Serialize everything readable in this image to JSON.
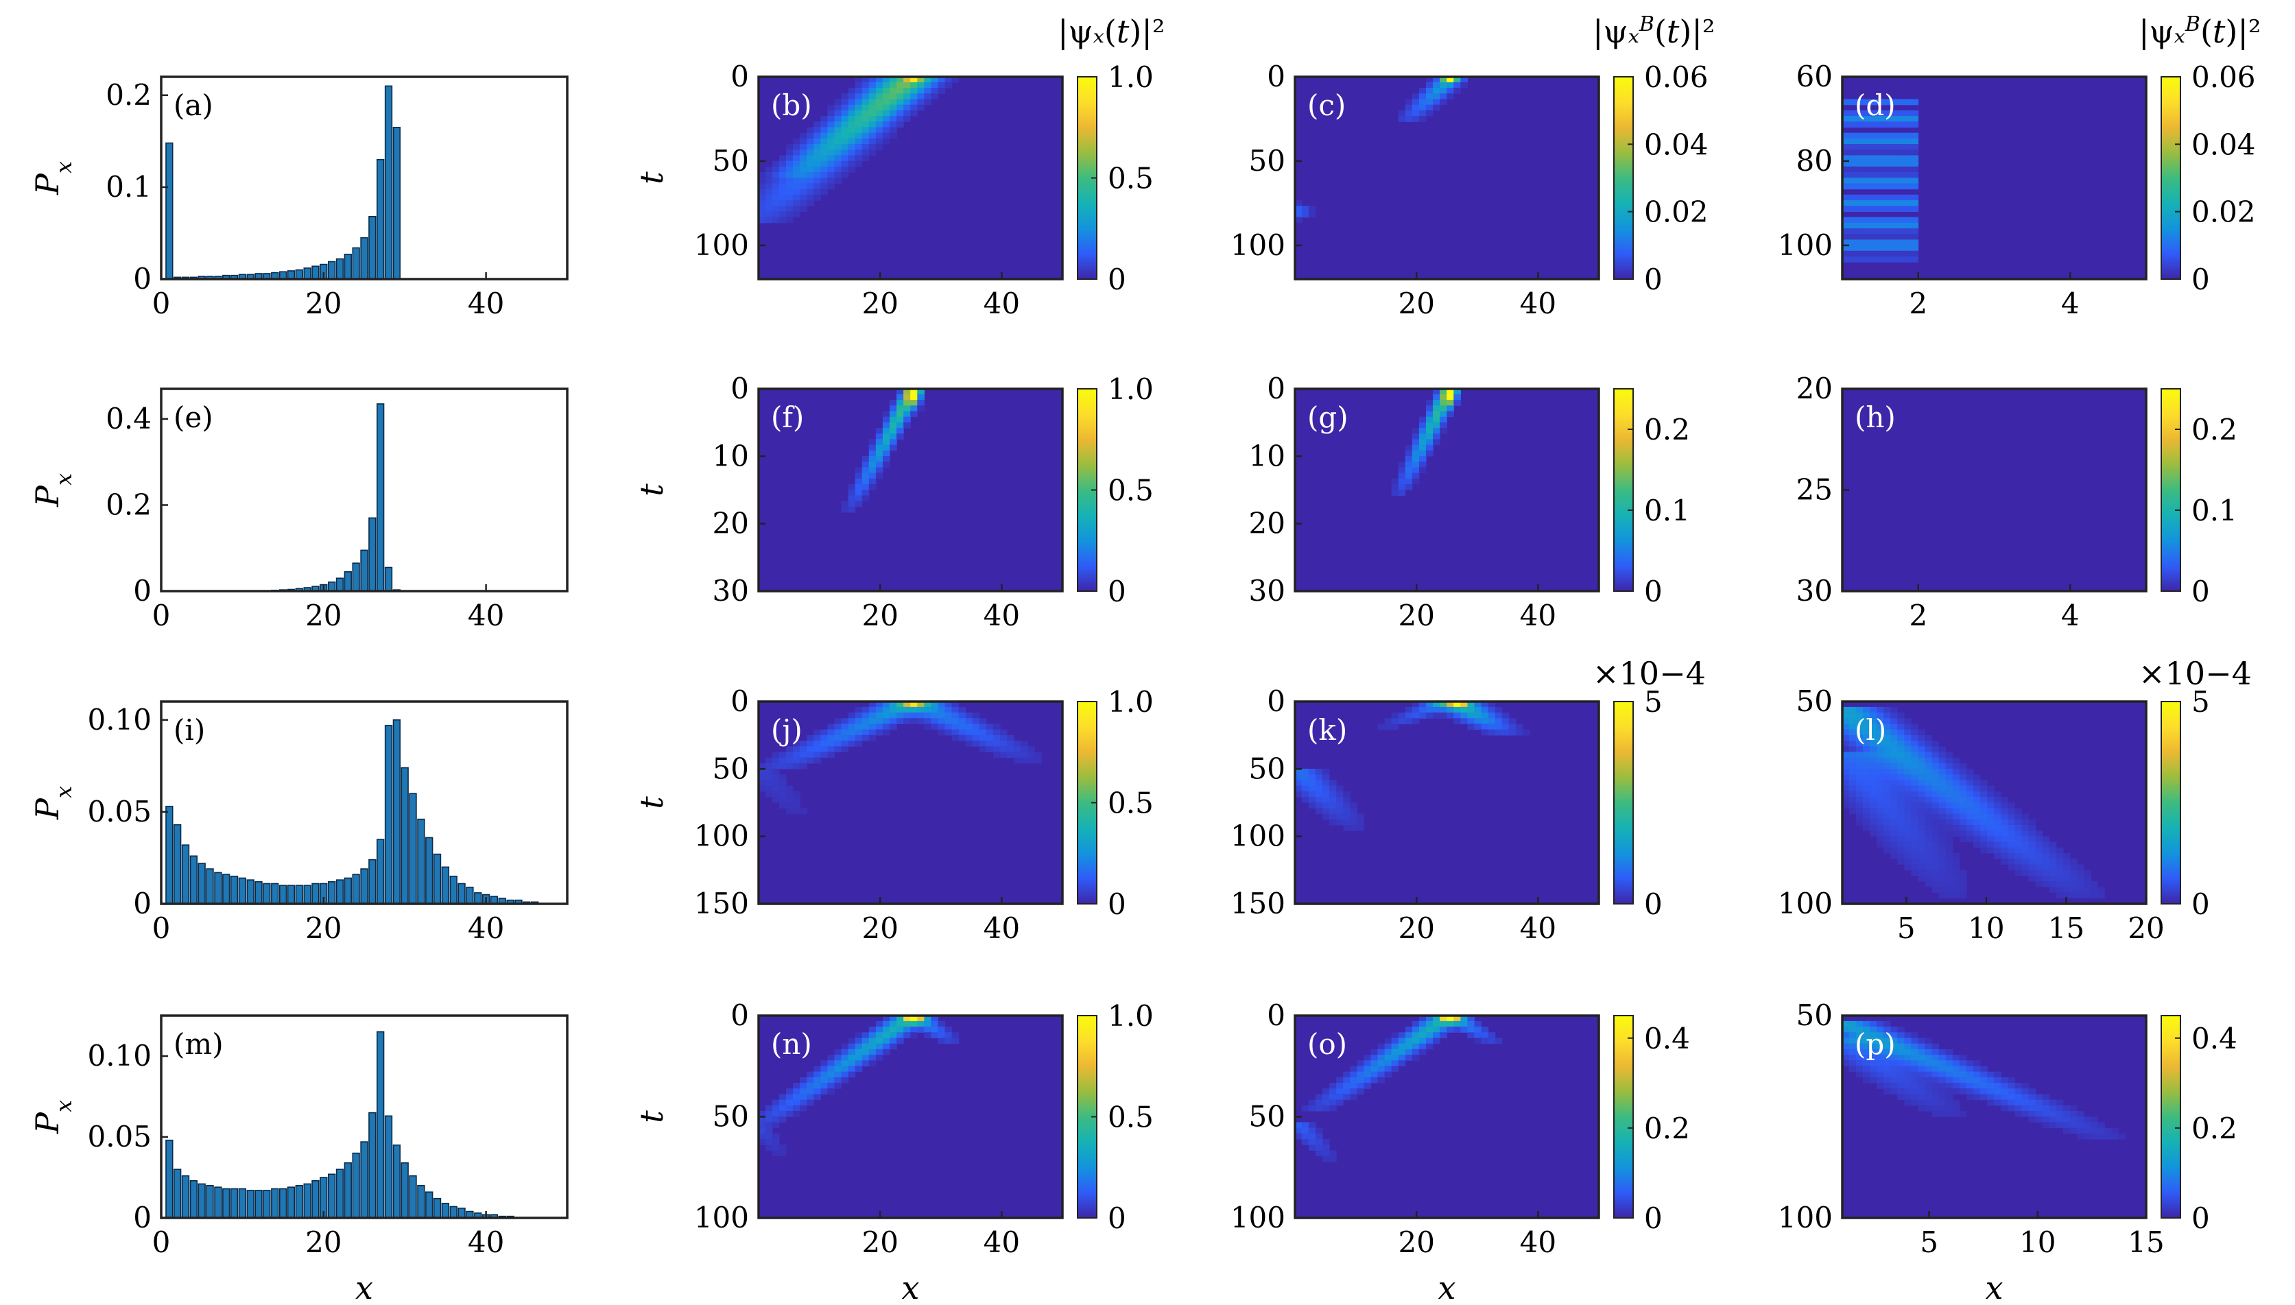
{
  "colorscale": [
    "#3e26a8",
    "#2f5cf8",
    "#1394dc",
    "#16b2b5",
    "#3dbb80",
    "#9bbd3f",
    "#ecb833",
    "#fdde2a",
    "#f9fb0e"
  ],
  "colors": {
    "bar_fill": "#1f77b4",
    "bar_edge": "#0a2a4a",
    "label_dark": "#000000",
    "label_light": "#ffffff"
  },
  "cb_titles": {
    "psi": "|ψx(t)|2",
    "psiB": "|ψxB(t)|2",
    "sci": "×10−4"
  },
  "chart_data": [
    {
      "id": "a",
      "type": "bar",
      "label": "(a)",
      "row": 0,
      "col": 0,
      "ylabel": "Px",
      "xlim": [
        0,
        50
      ],
      "ylim": [
        0,
        0.22
      ],
      "xticks": [
        0,
        20,
        40
      ],
      "xtick_labels": [
        "0",
        "20",
        "40"
      ],
      "yticks": [
        0,
        0.1,
        0.2
      ],
      "ytick_labels": [
        "0",
        "0.1",
        "0.2"
      ],
      "values": [
        0.148,
        0.002,
        0.002,
        0.002,
        0.003,
        0.003,
        0.003,
        0.004,
        0.004,
        0.005,
        0.005,
        0.006,
        0.006,
        0.007,
        0.008,
        0.009,
        0.01,
        0.012,
        0.014,
        0.016,
        0.019,
        0.022,
        0.027,
        0.034,
        0.045,
        0.068,
        0.13,
        0.21,
        0.165
      ]
    },
    {
      "id": "b",
      "type": "heatmap",
      "label": "(b)",
      "row": 0,
      "col": 1,
      "ylabel": "t",
      "xlim": [
        0,
        50
      ],
      "ylim": [
        0,
        120
      ],
      "xticks": [
        20,
        40
      ],
      "xtick_labels": [
        "20",
        "40"
      ],
      "yticks": [
        0,
        50,
        100
      ],
      "ytick_labels": [
        "0",
        "50",
        "100"
      ],
      "vmax": 1.0,
      "cbar_ticks": [
        0,
        0.5,
        1.0
      ],
      "cbar_tick_labels": [
        "0",
        "0.5",
        "1.0"
      ],
      "cbar_title": "psi",
      "features": [
        {
          "kind": "ray",
          "x0": 25,
          "t0": 0,
          "x1": 0,
          "t1": 85,
          "i0": 0.35,
          "i1": 0.08,
          "spread": 3.5
        },
        {
          "kind": "ray",
          "x0": 26,
          "t0": 0,
          "x1": 5,
          "t1": 60,
          "i0": 0.25,
          "i1": 0.06,
          "spread": 2.5
        },
        {
          "kind": "spot",
          "x": 25.5,
          "t": 0,
          "i": 0.55,
          "spread": 1.2
        }
      ]
    },
    {
      "id": "c",
      "type": "heatmap",
      "label": "(c)",
      "row": 0,
      "col": 2,
      "ylabel": "",
      "xlim": [
        0,
        50
      ],
      "ylim": [
        0,
        120
      ],
      "xticks": [
        20,
        40
      ],
      "xtick_labels": [
        "20",
        "40"
      ],
      "yticks": [
        0,
        50,
        100
      ],
      "ytick_labels": [
        "0",
        "50",
        "100"
      ],
      "vmax": 0.06,
      "cbar_ticks": [
        0,
        0.02,
        0.04,
        0.06
      ],
      "cbar_tick_labels": [
        "0",
        "0.02",
        "0.04",
        "0.06"
      ],
      "cbar_title": "psiB",
      "features": [
        {
          "kind": "ray",
          "x0": 26,
          "t0": 0,
          "x1": 18,
          "t1": 28,
          "i0": 0.35,
          "i1": 0.05,
          "spread": 1.5
        },
        {
          "kind": "spot",
          "x": 25.5,
          "t": 1,
          "i": 0.95,
          "spread": 1.0
        },
        {
          "kind": "spot",
          "x": 0.5,
          "t": 80,
          "i": 0.15,
          "spread": 2.0
        }
      ]
    },
    {
      "id": "d",
      "type": "heatmap",
      "label": "(d)",
      "row": 0,
      "col": 3,
      "ylabel": "",
      "xlim": [
        1,
        5
      ],
      "ylim": [
        60,
        108
      ],
      "xticks": [
        2,
        4
      ],
      "xtick_labels": [
        "2",
        "4"
      ],
      "yticks": [
        60,
        80,
        100
      ],
      "ytick_labels": [
        "60",
        "80",
        "100"
      ],
      "vmax": 0.06,
      "cbar_ticks": [
        0,
        0.02,
        0.04,
        0.06
      ],
      "cbar_tick_labels": [
        "0",
        "0.02",
        "0.04",
        "0.06"
      ],
      "cbar_title": "psiB",
      "features": [
        {
          "kind": "bands",
          "xmax": 2.0,
          "tmin": 65,
          "tmax": 104,
          "period": 5.0,
          "i": 0.22
        }
      ]
    },
    {
      "id": "e",
      "type": "bar",
      "label": "(e)",
      "row": 1,
      "col": 0,
      "ylabel": "Px",
      "xlim": [
        0,
        50
      ],
      "ylim": [
        0,
        0.47
      ],
      "xticks": [
        0,
        20,
        40
      ],
      "xtick_labels": [
        "0",
        "20",
        "40"
      ],
      "yticks": [
        0,
        0.2,
        0.4
      ],
      "ytick_labels": [
        "0",
        "0.2",
        "0.4"
      ],
      "values": [
        0,
        0,
        0,
        0,
        0,
        0,
        0,
        0,
        0,
        0,
        0,
        0,
        0,
        0.002,
        0.003,
        0.004,
        0.006,
        0.008,
        0.011,
        0.015,
        0.021,
        0.03,
        0.045,
        0.065,
        0.095,
        0.17,
        0.435,
        0.055,
        0.003
      ]
    },
    {
      "id": "f",
      "type": "heatmap",
      "label": "(f)",
      "row": 1,
      "col": 1,
      "ylabel": "t",
      "xlim": [
        0,
        50
      ],
      "ylim": [
        0,
        30
      ],
      "xticks": [
        20,
        40
      ],
      "xtick_labels": [
        "20",
        "40"
      ],
      "yticks": [
        0,
        10,
        20,
        30
      ],
      "ytick_labels": [
        "0",
        "10",
        "20",
        "30"
      ],
      "vmax": 1.0,
      "cbar_ticks": [
        0,
        0.5,
        1.0
      ],
      "cbar_tick_labels": [
        "0",
        "0.5",
        "1.0"
      ],
      "cbar_title": "",
      "features": [
        {
          "kind": "ray",
          "x0": 25.5,
          "t0": 0,
          "x1": 15,
          "t1": 18,
          "i0": 0.55,
          "i1": 0.05,
          "spread": 1.0
        },
        {
          "kind": "spot",
          "x": 25.5,
          "t": 0.3,
          "i": 1.0,
          "spread": 0.9
        }
      ]
    },
    {
      "id": "g",
      "type": "heatmap",
      "label": "(g)",
      "row": 1,
      "col": 2,
      "ylabel": "",
      "xlim": [
        0,
        50
      ],
      "ylim": [
        0,
        30
      ],
      "xticks": [
        20,
        40
      ],
      "xtick_labels": [
        "20",
        "40"
      ],
      "yticks": [
        0,
        10,
        20,
        30
      ],
      "ytick_labels": [
        "0",
        "10",
        "20",
        "30"
      ],
      "vmax": 0.25,
      "cbar_ticks": [
        0,
        0.1,
        0.2
      ],
      "cbar_tick_labels": [
        "0",
        "0.1",
        "0.2"
      ],
      "cbar_title": "",
      "features": [
        {
          "kind": "ray",
          "x0": 25.5,
          "t0": 0,
          "x1": 17,
          "t1": 16,
          "i0": 0.55,
          "i1": 0.05,
          "spread": 1.0
        },
        {
          "kind": "spot",
          "x": 25.5,
          "t": 0.5,
          "i": 0.9,
          "spread": 0.8
        }
      ]
    },
    {
      "id": "h",
      "type": "heatmap",
      "label": "(h)",
      "row": 1,
      "col": 3,
      "ylabel": "",
      "xlim": [
        1,
        5
      ],
      "ylim": [
        20,
        30
      ],
      "xticks": [
        2,
        4
      ],
      "xtick_labels": [
        "2",
        "4"
      ],
      "yticks": [
        20,
        25,
        30
      ],
      "ytick_labels": [
        "20",
        "25",
        "30"
      ],
      "vmax": 0.25,
      "cbar_ticks": [
        0,
        0.1,
        0.2
      ],
      "cbar_tick_labels": [
        "0",
        "0.1",
        "0.2"
      ],
      "cbar_title": "",
      "features": []
    },
    {
      "id": "i",
      "type": "bar",
      "label": "(i)",
      "row": 2,
      "col": 0,
      "ylabel": "Px",
      "xlim": [
        0,
        50
      ],
      "ylim": [
        0,
        0.11
      ],
      "xticks": [
        0,
        20,
        40
      ],
      "xtick_labels": [
        "0",
        "20",
        "40"
      ],
      "yticks": [
        0,
        0.05,
        0.1
      ],
      "ytick_labels": [
        "0",
        "0.05",
        "0.10"
      ],
      "values": [
        0.053,
        0.043,
        0.032,
        0.026,
        0.022,
        0.019,
        0.017,
        0.016,
        0.015,
        0.014,
        0.013,
        0.012,
        0.011,
        0.011,
        0.01,
        0.01,
        0.01,
        0.01,
        0.011,
        0.011,
        0.012,
        0.013,
        0.014,
        0.016,
        0.019,
        0.024,
        0.035,
        0.097,
        0.1,
        0.074,
        0.06,
        0.046,
        0.036,
        0.027,
        0.02,
        0.015,
        0.011,
        0.009,
        0.006,
        0.005,
        0.004,
        0.003,
        0.002,
        0.002,
        0.001,
        0.001
      ]
    },
    {
      "id": "j",
      "type": "heatmap",
      "label": "(j)",
      "row": 2,
      "col": 1,
      "ylabel": "t",
      "xlim": [
        0,
        50
      ],
      "ylim": [
        0,
        150
      ],
      "xticks": [
        20,
        40
      ],
      "xtick_labels": [
        "20",
        "40"
      ],
      "yticks": [
        0,
        50,
        100,
        150
      ],
      "ytick_labels": [
        "0",
        "50",
        "100",
        "150"
      ],
      "vmax": 1.0,
      "cbar_ticks": [
        0,
        0.5,
        1.0
      ],
      "cbar_tick_labels": [
        "0",
        "0.5",
        "1.0"
      ],
      "cbar_title": "",
      "features": [
        {
          "kind": "ray",
          "x0": 25.5,
          "t0": 0,
          "x1": 3,
          "t1": 50,
          "i0": 0.3,
          "i1": 0.06,
          "spread": 3.0
        },
        {
          "kind": "ray",
          "x0": 25.5,
          "t0": 0,
          "x1": 45,
          "t1": 45,
          "i0": 0.25,
          "i1": 0.03,
          "spread": 3.0
        },
        {
          "kind": "ray",
          "x0": 0,
          "t0": 50,
          "x1": 8,
          "t1": 90,
          "i0": 0.06,
          "i1": 0.02,
          "spread": 2.5
        },
        {
          "kind": "spot",
          "x": 25.5,
          "t": 0,
          "i": 0.6,
          "spread": 1.5
        }
      ]
    },
    {
      "id": "k",
      "type": "heatmap",
      "label": "(k)",
      "row": 2,
      "col": 2,
      "ylabel": "",
      "xlim": [
        0,
        50
      ],
      "ylim": [
        0,
        150
      ],
      "xticks": [
        20,
        40
      ],
      "xtick_labels": [
        "20",
        "40"
      ],
      "yticks": [
        0,
        50,
        100,
        150
      ],
      "ytick_labels": [
        "0",
        "50",
        "100",
        "150"
      ],
      "vmax": 5,
      "cbar_ticks": [
        0,
        5
      ],
      "cbar_tick_labels": [
        "0",
        "5"
      ],
      "cbar_title": "sci",
      "features": [
        {
          "kind": "ray",
          "x0": 26,
          "t0": 0,
          "x1": 35,
          "t1": 25,
          "i0": 0.45,
          "i1": 0.05,
          "spread": 2.5
        },
        {
          "kind": "ray",
          "x0": 25,
          "t0": 0,
          "x1": 15,
          "t1": 20,
          "i0": 0.2,
          "i1": 0.03,
          "spread": 2.0
        },
        {
          "kind": "ray",
          "x0": 0,
          "t0": 50,
          "x1": 10,
          "t1": 95,
          "i0": 0.18,
          "i1": 0.03,
          "spread": 2.5
        },
        {
          "kind": "spot",
          "x": 27,
          "t": 1,
          "i": 0.6,
          "spread": 1.5
        }
      ]
    },
    {
      "id": "l",
      "type": "heatmap",
      "label": "(l)",
      "row": 2,
      "col": 3,
      "ylabel": "",
      "xlim": [
        1,
        20
      ],
      "ylim": [
        50,
        100
      ],
      "xticks": [
        5,
        10,
        15,
        20
      ],
      "xtick_labels": [
        "5",
        "10",
        "15",
        "20"
      ],
      "yticks": [
        50,
        100
      ],
      "ytick_labels": [
        "50",
        "100"
      ],
      "vmax": 5,
      "cbar_ticks": [
        0,
        5
      ],
      "cbar_tick_labels": [
        "0",
        "5"
      ],
      "cbar_title": "sci",
      "features": [
        {
          "kind": "ray",
          "x0": 1,
          "t0": 52,
          "x1": 16,
          "t1": 98,
          "i0": 0.3,
          "i1": 0.04,
          "spread": 1.5
        },
        {
          "kind": "ray",
          "x0": 1,
          "t0": 62,
          "x1": 8,
          "t1": 98,
          "i0": 0.15,
          "i1": 0.03,
          "spread": 1.5
        }
      ]
    },
    {
      "id": "m",
      "type": "bar",
      "label": "(m)",
      "row": 3,
      "col": 0,
      "ylabel": "Px",
      "xlim": [
        0,
        50
      ],
      "ylim": [
        0,
        0.125
      ],
      "xticks": [
        0,
        20,
        40
      ],
      "xtick_labels": [
        "0",
        "20",
        "40"
      ],
      "yticks": [
        0,
        0.05,
        0.1
      ],
      "ytick_labels": [
        "0",
        "0.05",
        "0.10"
      ],
      "values": [
        0.048,
        0.03,
        0.026,
        0.023,
        0.021,
        0.02,
        0.019,
        0.018,
        0.018,
        0.018,
        0.017,
        0.017,
        0.017,
        0.018,
        0.018,
        0.019,
        0.02,
        0.021,
        0.023,
        0.025,
        0.027,
        0.03,
        0.034,
        0.04,
        0.047,
        0.065,
        0.115,
        0.063,
        0.045,
        0.034,
        0.026,
        0.02,
        0.016,
        0.012,
        0.009,
        0.007,
        0.006,
        0.004,
        0.003,
        0.002,
        0.002,
        0.001,
        0.001
      ]
    },
    {
      "id": "n",
      "type": "heatmap",
      "label": "(n)",
      "row": 3,
      "col": 1,
      "ylabel": "t",
      "xlim": [
        0,
        50
      ],
      "ylim": [
        0,
        100
      ],
      "xticks": [
        20,
        40
      ],
      "xtick_labels": [
        "20",
        "40"
      ],
      "yticks": [
        0,
        50,
        100
      ],
      "ytick_labels": [
        "0",
        "50",
        "100"
      ],
      "vmax": 1.0,
      "cbar_ticks": [
        0,
        0.5,
        1.0
      ],
      "cbar_tick_labels": [
        "0",
        "0.5",
        "1.0"
      ],
      "cbar_title": "",
      "features": [
        {
          "kind": "ray",
          "x0": 25.5,
          "t0": 0,
          "x1": 0,
          "t1": 55,
          "i0": 0.4,
          "i1": 0.06,
          "spread": 2.0
        },
        {
          "kind": "ray",
          "x0": 25.5,
          "t0": 0,
          "x1": 32,
          "t1": 14,
          "i0": 0.3,
          "i1": 0.04,
          "spread": 1.5
        },
        {
          "kind": "ray",
          "x0": 0,
          "t0": 55,
          "x1": 4,
          "t1": 70,
          "i0": 0.08,
          "i1": 0.02,
          "spread": 1.5
        },
        {
          "kind": "spot",
          "x": 25.5,
          "t": 0.5,
          "i": 0.85,
          "spread": 1.2
        }
      ]
    },
    {
      "id": "o",
      "type": "heatmap",
      "label": "(o)",
      "row": 3,
      "col": 2,
      "ylabel": "",
      "xlim": [
        0,
        50
      ],
      "ylim": [
        0,
        100
      ],
      "xticks": [
        20,
        40
      ],
      "xtick_labels": [
        "20",
        "40"
      ],
      "yticks": [
        0,
        50,
        100
      ],
      "ytick_labels": [
        "0",
        "50",
        "100"
      ],
      "vmax": 0.45,
      "cbar_ticks": [
        0,
        0.2,
        0.4
      ],
      "cbar_tick_labels": [
        "0",
        "0.2",
        "0.4"
      ],
      "cbar_title": "",
      "features": [
        {
          "kind": "ray",
          "x0": 25.5,
          "t0": 0,
          "x1": 3,
          "t1": 48,
          "i0": 0.4,
          "i1": 0.05,
          "spread": 2.0
        },
        {
          "kind": "ray",
          "x0": 25.5,
          "t0": 0,
          "x1": 33,
          "t1": 14,
          "i0": 0.3,
          "i1": 0.04,
          "spread": 1.5
        },
        {
          "kind": "ray",
          "x0": 0,
          "t0": 52,
          "x1": 6,
          "t1": 72,
          "i0": 0.15,
          "i1": 0.03,
          "spread": 1.5
        },
        {
          "kind": "spot",
          "x": 25.5,
          "t": 0.5,
          "i": 0.85,
          "spread": 1.2
        }
      ]
    },
    {
      "id": "p",
      "type": "heatmap",
      "label": "(p)",
      "row": 3,
      "col": 3,
      "ylabel": "",
      "xlim": [
        1,
        15
      ],
      "ylim": [
        50,
        100
      ],
      "xticks": [
        5,
        10,
        15
      ],
      "xtick_labels": [
        "5",
        "10",
        "15"
      ],
      "yticks": [
        50,
        100
      ],
      "ytick_labels": [
        "50",
        "100"
      ],
      "vmax": 0.45,
      "cbar_ticks": [
        0,
        0.2,
        0.4
      ],
      "cbar_tick_labels": [
        "0",
        "0.2",
        "0.4"
      ],
      "cbar_title": "",
      "features": [
        {
          "kind": "ray",
          "x0": 1,
          "t0": 52,
          "x1": 13,
          "t1": 80,
          "i0": 0.3,
          "i1": 0.04,
          "spread": 1.0
        },
        {
          "kind": "ray",
          "x0": 1,
          "t0": 56,
          "x1": 6,
          "t1": 75,
          "i0": 0.15,
          "i1": 0.03,
          "spread": 1.0
        }
      ]
    }
  ],
  "xlabels": {
    "bar": "x",
    "heat": "x"
  }
}
